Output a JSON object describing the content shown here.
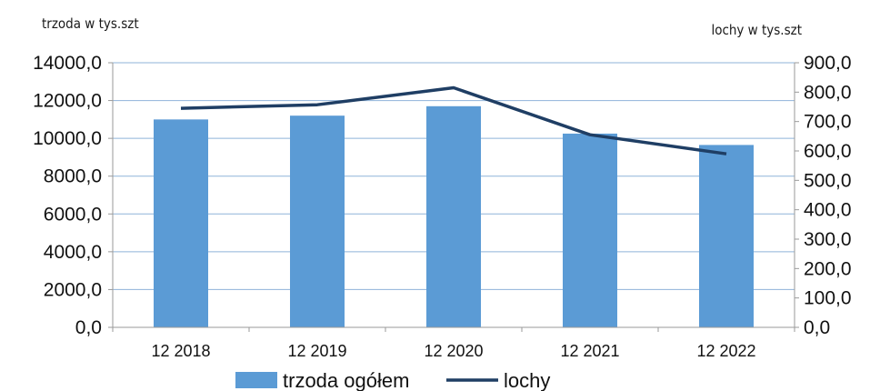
{
  "chart_data": {
    "type": "bar",
    "categories": [
      "12 2018",
      "12 2019",
      "12 2020",
      "12 2021",
      "12 2022"
    ],
    "series": [
      {
        "name": "trzoda ogółem",
        "type": "bar",
        "axis": "left",
        "values": [
          11000,
          11200,
          11700,
          10250,
          9650
        ],
        "color": "#5b9bd5"
      },
      {
        "name": "lochy",
        "type": "line",
        "axis": "right",
        "values": [
          745,
          757,
          815,
          655,
          590
        ],
        "color": "#1f3e64"
      }
    ],
    "left_axis": {
      "label": "trzoda w tys.szt",
      "min": 0,
      "max": 14000,
      "step": 2000,
      "ticks": [
        "0,0",
        "2000,0",
        "4000,0",
        "6000,0",
        "8000,0",
        "10000,0",
        "12000,0",
        "14000,0"
      ]
    },
    "right_axis": {
      "label": "lochy  w tys.szt",
      "min": 0,
      "max": 900,
      "step": 100,
      "ticks": [
        "0,0",
        "100,0",
        "200,0",
        "300,0",
        "400,0",
        "500,0",
        "600,0",
        "700,0",
        "800,0",
        "900,0"
      ]
    },
    "grid": true,
    "legend_position": "bottom",
    "colors": {
      "bar": "#5b9bd5",
      "line": "#1f3e64",
      "grid": "#8fb3d9",
      "axis": "#9a9a9a"
    }
  }
}
